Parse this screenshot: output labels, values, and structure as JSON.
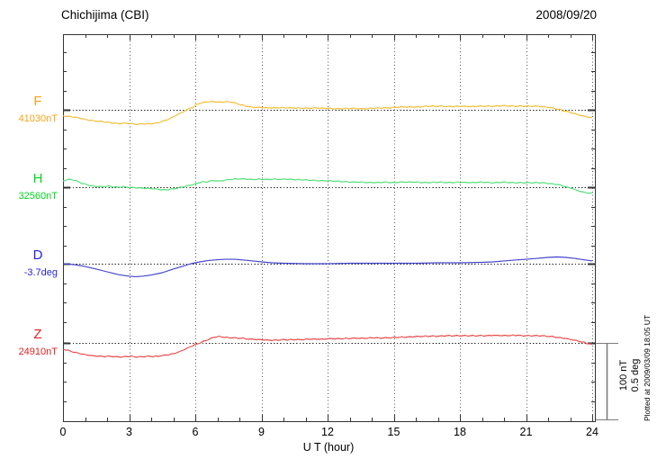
{
  "header": {
    "title": "Chichijima (CBI)",
    "date": "2008/09/20"
  },
  "annotations": {
    "scale_bar": {
      "line1": "100 nT",
      "line2": "0.5 deg"
    },
    "plotted_at": "Plotted at 2009/03/09 18:05 UT"
  },
  "chart_data": {
    "type": "line",
    "title": "Chichijima (CBI)",
    "date": "2008/09/20",
    "xlabel": "U T (hour)",
    "xlim": [
      0,
      24
    ],
    "x_ticks": [
      0,
      3,
      6,
      9,
      12,
      15,
      18,
      21,
      24
    ],
    "x_minor_step_hours": 1,
    "grid": "dotted vertical gridlines every 3 hours; dotted horizontal baseline per channel",
    "legend_position": "left-margin channel labels",
    "scale_divisions": {
      "nT_per_division": 100,
      "deg_per_division": 0.5
    },
    "series": [
      {
        "name": "F",
        "unit": "nT",
        "reference_value": 41030,
        "reference_label": "41030nT",
        "label_color": "#ffa216",
        "curve_color": "#f3bd35",
        "style": "jagged",
        "points_are": "[hour UT, delta from baseline in nT]",
        "points": [
          [
            0,
            -7.6
          ],
          [
            0.3,
            -8.8
          ],
          [
            0.7,
            -10.6
          ],
          [
            1,
            -12.4
          ],
          [
            1.3,
            -14.1
          ],
          [
            1.6,
            -14.7
          ],
          [
            1.9,
            -15.9
          ],
          [
            2.2,
            -17
          ],
          [
            2.5,
            -18.2
          ],
          [
            2.8,
            -17.6
          ],
          [
            3.1,
            -18.2
          ],
          [
            3.4,
            -18.8
          ],
          [
            3.7,
            -18.2
          ],
          [
            4,
            -18.2
          ],
          [
            4.3,
            -17
          ],
          [
            4.6,
            -14.1
          ],
          [
            4.9,
            -10.6
          ],
          [
            5.1,
            -7.6
          ],
          [
            5.3,
            -4.7
          ],
          [
            5.5,
            -1.8
          ],
          [
            5.7,
            1.2
          ],
          [
            5.8,
            2.9
          ],
          [
            5.9,
            2.9
          ],
          [
            6,
            5.3
          ],
          [
            6.1,
            7.6
          ],
          [
            6.3,
            9.4
          ],
          [
            6.5,
            10
          ],
          [
            6.8,
            10.6
          ],
          [
            7.1,
            10
          ],
          [
            7.4,
            10.6
          ],
          [
            7.6,
            10
          ],
          [
            7.8,
            8.8
          ],
          [
            8,
            7
          ],
          [
            8.3,
            4.7
          ],
          [
            8.6,
            3.5
          ],
          [
            9,
            2.9
          ],
          [
            9.5,
            2.4
          ],
          [
            10,
            2.9
          ],
          [
            10.5,
            2.4
          ],
          [
            11,
            1.8
          ],
          [
            11.5,
            2.4
          ],
          [
            12,
            1.8
          ],
          [
            12.5,
            1.2
          ],
          [
            13,
            1.8
          ],
          [
            13.5,
            1.2
          ],
          [
            14,
            1.8
          ],
          [
            14.5,
            2.4
          ],
          [
            15,
            2.9
          ],
          [
            15.5,
            4.1
          ],
          [
            16,
            3.5
          ],
          [
            16.5,
            4.7
          ],
          [
            17,
            4.7
          ],
          [
            17.5,
            4.1
          ],
          [
            18,
            4.7
          ],
          [
            18.5,
            4.1
          ],
          [
            19,
            4.7
          ],
          [
            19.5,
            4.7
          ],
          [
            20,
            5.3
          ],
          [
            20.5,
            4.7
          ],
          [
            21,
            4.7
          ],
          [
            21.5,
            4.7
          ],
          [
            21.8,
            4.1
          ],
          [
            22.1,
            2.9
          ],
          [
            22.4,
            1.2
          ],
          [
            22.7,
            -1.2
          ],
          [
            23,
            -3.5
          ],
          [
            23.3,
            -5.9
          ],
          [
            23.6,
            -8.2
          ],
          [
            23.8,
            -9.4
          ],
          [
            24,
            -10.6
          ]
        ]
      },
      {
        "name": "H",
        "unit": "nT",
        "reference_value": 32560,
        "reference_label": "32560nT",
        "label_color": "#00d61e",
        "curve_color": "#53e079",
        "style": "jagged",
        "points_are": "[hour UT, delta from baseline in nT]",
        "points": [
          [
            0,
            8.2
          ],
          [
            0.3,
            10.6
          ],
          [
            0.6,
            8.2
          ],
          [
            0.9,
            4.7
          ],
          [
            1.2,
            2.4
          ],
          [
            1.5,
            1.2
          ],
          [
            1.8,
            0.6
          ],
          [
            2.1,
            1.2
          ],
          [
            2.4,
            0
          ],
          [
            2.7,
            0.6
          ],
          [
            3,
            0
          ],
          [
            3.3,
            -0.6
          ],
          [
            3.6,
            -1.2
          ],
          [
            3.9,
            -1.8
          ],
          [
            4.2,
            -2.4
          ],
          [
            4.5,
            -3.5
          ],
          [
            4.8,
            -2.9
          ],
          [
            5.1,
            -1.8
          ],
          [
            5.4,
            0
          ],
          [
            5.7,
            2.4
          ],
          [
            5.9,
            3.5
          ],
          [
            6.1,
            5.3
          ],
          [
            6.3,
            7
          ],
          [
            6.5,
            6.5
          ],
          [
            6.7,
            8.2
          ],
          [
            6.9,
            8.8
          ],
          [
            7.1,
            7.6
          ],
          [
            7.4,
            9.4
          ],
          [
            7.7,
            10.6
          ],
          [
            8,
            11.2
          ],
          [
            8.3,
            10.6
          ],
          [
            8.6,
            10
          ],
          [
            8.9,
            10.6
          ],
          [
            9.2,
            10
          ],
          [
            9.5,
            10.6
          ],
          [
            9.8,
            10
          ],
          [
            10.1,
            10.6
          ],
          [
            10.5,
            10
          ],
          [
            11,
            9.4
          ],
          [
            11.5,
            8.8
          ],
          [
            12,
            8.2
          ],
          [
            12.5,
            7.6
          ],
          [
            13,
            7
          ],
          [
            13.5,
            6.5
          ],
          [
            14,
            5.9
          ],
          [
            14.5,
            6.5
          ],
          [
            15,
            5.9
          ],
          [
            15.5,
            7
          ],
          [
            16,
            6.5
          ],
          [
            16.5,
            5.9
          ],
          [
            17,
            6.5
          ],
          [
            17.5,
            5.9
          ],
          [
            18,
            6.5
          ],
          [
            18.5,
            5.9
          ],
          [
            19,
            6.5
          ],
          [
            19.5,
            5.9
          ],
          [
            20,
            6.5
          ],
          [
            20.5,
            5.9
          ],
          [
            21,
            5.9
          ],
          [
            21.5,
            5.9
          ],
          [
            22,
            5.3
          ],
          [
            22.3,
            4.1
          ],
          [
            22.6,
            2.4
          ],
          [
            22.9,
            0
          ],
          [
            23.2,
            -2.9
          ],
          [
            23.5,
            -5.9
          ],
          [
            23.8,
            -7.6
          ],
          [
            24,
            -8.2
          ]
        ]
      },
      {
        "name": "D",
        "unit": "deg",
        "reference_value": -3.7,
        "reference_label": "-3.7deg",
        "label_color": "#2525dd",
        "curve_color": "#4545cc",
        "style": "smooth",
        "points_are": "[hour UT, delta from baseline in deg]",
        "points": [
          [
            0,
            0
          ],
          [
            0.5,
            -0.006
          ],
          [
            1,
            -0.018
          ],
          [
            1.5,
            -0.035
          ],
          [
            2,
            -0.053
          ],
          [
            2.5,
            -0.071
          ],
          [
            3,
            -0.082
          ],
          [
            3.3,
            -0.085
          ],
          [
            3.6,
            -0.082
          ],
          [
            4,
            -0.074
          ],
          [
            4.5,
            -0.059
          ],
          [
            5,
            -0.035
          ],
          [
            5.4,
            -0.018
          ],
          [
            5.8,
            0
          ],
          [
            6.2,
            0.012
          ],
          [
            6.6,
            0.021
          ],
          [
            7,
            0.026
          ],
          [
            7.4,
            0.029
          ],
          [
            7.8,
            0.029
          ],
          [
            8.2,
            0.024
          ],
          [
            8.6,
            0.018
          ],
          [
            9,
            0.012
          ],
          [
            9.5,
            0.006
          ],
          [
            10,
            0.003
          ],
          [
            11,
            0
          ],
          [
            12,
            0
          ],
          [
            13,
            0.003
          ],
          [
            14,
            0.003
          ],
          [
            15,
            0.003
          ],
          [
            16,
            0.003
          ],
          [
            17,
            0.006
          ],
          [
            18,
            0.006
          ],
          [
            19,
            0.009
          ],
          [
            19.5,
            0.012
          ],
          [
            20,
            0.018
          ],
          [
            20.5,
            0.024
          ],
          [
            21,
            0.029
          ],
          [
            21.5,
            0.035
          ],
          [
            22,
            0.041
          ],
          [
            22.4,
            0.044
          ],
          [
            22.8,
            0.041
          ],
          [
            23.2,
            0.035
          ],
          [
            23.6,
            0.026
          ],
          [
            24,
            0.018
          ]
        ]
      },
      {
        "name": "Z",
        "unit": "nT",
        "reference_value": 24910,
        "reference_label": "24910nT",
        "label_color": "#e32222",
        "curve_color": "#eb4a4a",
        "style": "jagged",
        "points_are": "[hour UT, delta from baseline in nT]",
        "points": [
          [
            0,
            -8.2
          ],
          [
            0.3,
            -10.6
          ],
          [
            0.7,
            -13.5
          ],
          [
            1,
            -15.3
          ],
          [
            1.4,
            -17
          ],
          [
            1.8,
            -17.6
          ],
          [
            2.2,
            -17.6
          ],
          [
            2.6,
            -18.2
          ],
          [
            3,
            -17.6
          ],
          [
            3.4,
            -18.2
          ],
          [
            3.8,
            -17.6
          ],
          [
            4.2,
            -17.6
          ],
          [
            4.6,
            -16.5
          ],
          [
            5,
            -14.1
          ],
          [
            5.3,
            -11.2
          ],
          [
            5.6,
            -7.6
          ],
          [
            5.9,
            -3.5
          ],
          [
            6.2,
            0
          ],
          [
            6.5,
            3.5
          ],
          [
            6.7,
            5.9
          ],
          [
            6.9,
            7.6
          ],
          [
            7.1,
            8.2
          ],
          [
            7.3,
            7.6
          ],
          [
            7.5,
            7
          ],
          [
            7.8,
            6.5
          ],
          [
            8.1,
            5.9
          ],
          [
            8.4,
            5.3
          ],
          [
            8.7,
            4.7
          ],
          [
            9,
            4.1
          ],
          [
            9.5,
            3.5
          ],
          [
            10,
            4.1
          ],
          [
            10.5,
            4.1
          ],
          [
            11,
            4.7
          ],
          [
            11.5,
            4.7
          ],
          [
            12,
            5.3
          ],
          [
            12.5,
            5.3
          ],
          [
            13,
            5.9
          ],
          [
            13.5,
            5.9
          ],
          [
            14,
            6.5
          ],
          [
            14.5,
            6.5
          ],
          [
            15,
            7
          ],
          [
            15.5,
            7.6
          ],
          [
            16,
            8.2
          ],
          [
            16.5,
            8.8
          ],
          [
            17,
            8.8
          ],
          [
            17.5,
            9.4
          ],
          [
            18,
            9.4
          ],
          [
            18.5,
            9.4
          ],
          [
            19,
            9.4
          ],
          [
            19.5,
            10
          ],
          [
            20,
            9.4
          ],
          [
            20.5,
            10
          ],
          [
            21,
            9.4
          ],
          [
            21.5,
            9.4
          ],
          [
            22,
            8.8
          ],
          [
            22.5,
            7
          ],
          [
            23,
            4.7
          ],
          [
            23.4,
            2.4
          ],
          [
            23.7,
            0
          ],
          [
            24,
            -2.4
          ]
        ]
      }
    ],
    "style_colors": {
      "frame": "#333333",
      "gridline": "#555555",
      "baseline_dots": "#222222",
      "scale_bar": "#7d7d7d",
      "text": "#000000"
    }
  }
}
